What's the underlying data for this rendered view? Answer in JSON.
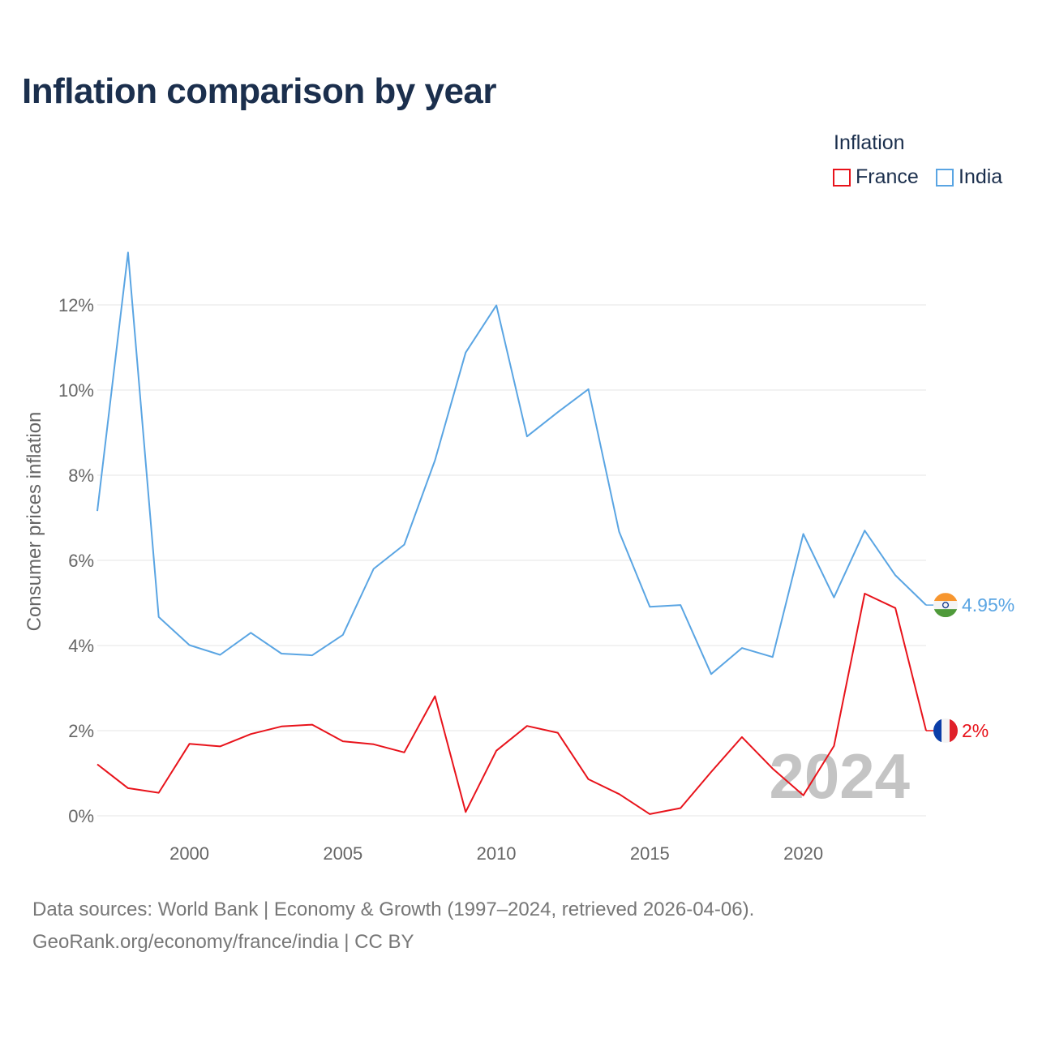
{
  "title": "Inflation comparison by year",
  "legend": {
    "title": "Inflation",
    "items": [
      {
        "name": "France",
        "color": "#e8131b"
      },
      {
        "name": "India",
        "color": "#5aa5e3"
      }
    ]
  },
  "footer": {
    "line1": "Data sources: World Bank | Economy & Growth (1997–2024, retrieved 2026-04-06).",
    "line2": "GeoRank.org/economy/france/india | CC BY"
  },
  "chart_data": {
    "type": "line",
    "title": "Inflation comparison by year",
    "xlabel": "",
    "ylabel": "Consumer prices inflation",
    "x": [
      1997,
      1998,
      1999,
      2000,
      2001,
      2002,
      2003,
      2004,
      2005,
      2006,
      2007,
      2008,
      2009,
      2010,
      2011,
      2012,
      2013,
      2014,
      2015,
      2016,
      2017,
      2018,
      2019,
      2020,
      2021,
      2022,
      2023,
      2024
    ],
    "xlim": [
      1997,
      2024
    ],
    "ylim": [
      0,
      13.2
    ],
    "xticks": [
      2000,
      2005,
      2010,
      2015,
      2020
    ],
    "xtick_labels": [
      "2000",
      "2005",
      "2010",
      "2015",
      "2020"
    ],
    "yticks": [
      0,
      2,
      4,
      6,
      8,
      10,
      12
    ],
    "ytick_labels": [
      "0%",
      "2%",
      "4%",
      "6%",
      "8%",
      "10%",
      "12%"
    ],
    "grid": true,
    "year_watermark": "2024",
    "series": [
      {
        "name": "France",
        "color": "#e8131b",
        "end_label": "2%",
        "values": [
          1.21,
          0.65,
          0.54,
          1.69,
          1.63,
          1.92,
          2.1,
          2.14,
          1.75,
          1.68,
          1.49,
          2.81,
          0.09,
          1.53,
          2.11,
          1.95,
          0.86,
          0.51,
          0.04,
          0.18,
          1.03,
          1.85,
          1.11,
          0.48,
          1.64,
          5.22,
          4.88,
          2.0
        ]
      },
      {
        "name": "India",
        "color": "#5aa5e3",
        "end_label": "4.95%",
        "values": [
          7.16,
          13.23,
          4.67,
          4.01,
          3.78,
          4.3,
          3.81,
          3.77,
          4.25,
          5.8,
          6.37,
          8.35,
          10.88,
          11.99,
          8.91,
          9.48,
          10.02,
          6.67,
          4.91,
          4.95,
          3.33,
          3.94,
          3.73,
          6.62,
          5.13,
          6.7,
          5.65,
          4.95
        ]
      }
    ]
  }
}
